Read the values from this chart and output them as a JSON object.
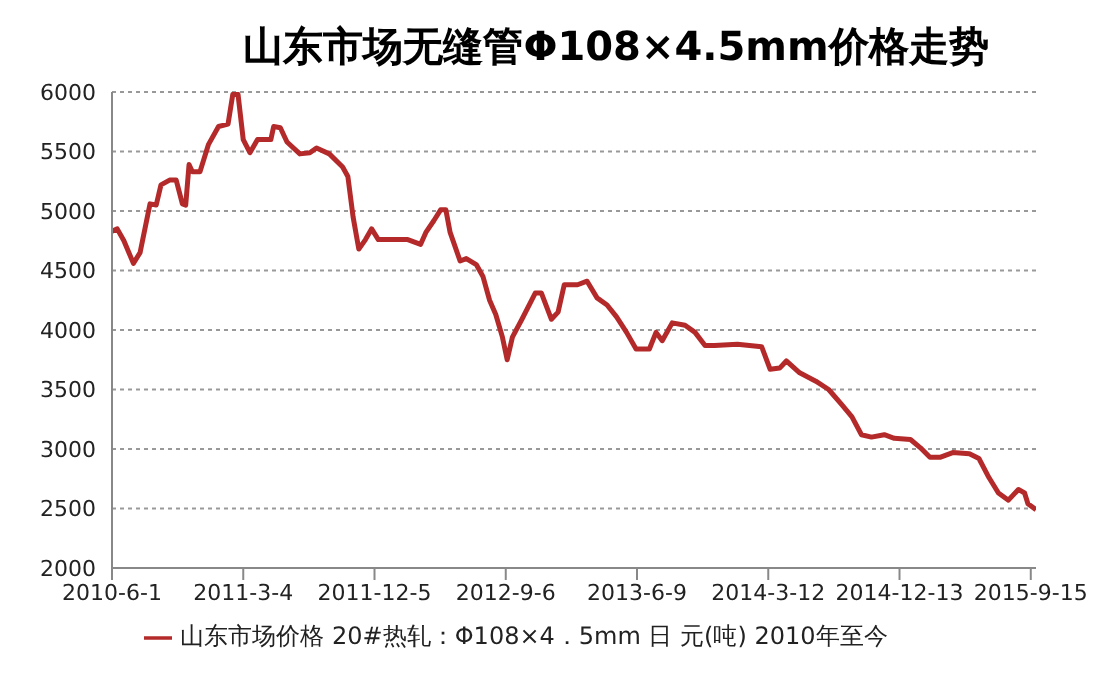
{
  "chart_data": {
    "type": "line",
    "title": "山东市场无缝管Φ108×4.5mm价格走势",
    "x": [
      "2010-06-01",
      "2010-06-12",
      "2010-06-26",
      "2010-07-16",
      "2010-07-30",
      "2010-08-20",
      "2010-09-02",
      "2010-09-12",
      "2010-09-30",
      "2010-10-14",
      "2010-10-27",
      "2010-11-03",
      "2010-11-10",
      "2010-11-17",
      "2010-12-03",
      "2010-12-21",
      "2011-01-11",
      "2011-01-31",
      "2011-02-10",
      "2011-02-21",
      "2011-03-04",
      "2011-03-18",
      "2011-04-03",
      "2011-05-01",
      "2011-05-07",
      "2011-05-21",
      "2011-06-04",
      "2011-07-01",
      "2011-07-22",
      "2011-08-05",
      "2011-09-01",
      "2011-09-29",
      "2011-10-10",
      "2011-10-21",
      "2011-11-02",
      "2011-11-16",
      "2011-11-29",
      "2011-12-13",
      "2012-01-03",
      "2012-02-13",
      "2012-03-11",
      "2012-03-22",
      "2012-04-08",
      "2012-04-22",
      "2012-05-03",
      "2012-05-12",
      "2012-06-02",
      "2012-06-15",
      "2012-07-06",
      "2012-07-20",
      "2012-08-03",
      "2012-08-16",
      "2012-08-30",
      "2012-09-09",
      "2012-09-20",
      "2012-10-10",
      "2012-11-07",
      "2012-11-20",
      "2012-12-11",
      "2012-12-25",
      "2013-01-07",
      "2013-02-04",
      "2013-02-24",
      "2013-03-17",
      "2013-04-07",
      "2013-04-27",
      "2013-05-18",
      "2013-06-07",
      "2013-07-05",
      "2013-07-19",
      "2013-08-01",
      "2013-08-22",
      "2013-09-18",
      "2013-10-09",
      "2013-10-30",
      "2013-11-19",
      "2014-01-06",
      "2014-02-26",
      "2014-03-16",
      "2014-04-05",
      "2014-04-19",
      "2014-05-17",
      "2014-06-20",
      "2014-07-17",
      "2014-08-14",
      "2014-09-04",
      "2014-09-24",
      "2014-10-15",
      "2014-11-11",
      "2014-12-02",
      "2015-01-05",
      "2015-01-26",
      "2015-02-15",
      "2015-03-08",
      "2015-04-04",
      "2015-05-09",
      "2015-05-29",
      "2015-06-19",
      "2015-07-09",
      "2015-07-30",
      "2015-08-20",
      "2015-09-02",
      "2015-09-09",
      "2015-09-26"
    ],
    "series": [
      {
        "name": "山东市场价格 20#热轧：Φ108×4．5mm 日 元(吨) 2010年至今",
        "color": "#b42a2a",
        "values": [
          4830,
          4850,
          4750,
          4560,
          4650,
          5060,
          5050,
          5220,
          5260,
          5260,
          5060,
          5050,
          5390,
          5330,
          5330,
          5560,
          5710,
          5730,
          5980,
          5980,
          5600,
          5490,
          5600,
          5600,
          5710,
          5700,
          5580,
          5480,
          5490,
          5530,
          5480,
          5370,
          5290,
          4950,
          4680,
          4760,
          4850,
          4760,
          4760,
          4760,
          4720,
          4820,
          4920,
          5010,
          5010,
          4820,
          4580,
          4600,
          4550,
          4450,
          4250,
          4130,
          3940,
          3750,
          3940,
          4090,
          4310,
          4310,
          4090,
          4150,
          4380,
          4380,
          4410,
          4270,
          4210,
          4110,
          3980,
          3840,
          3840,
          3980,
          3910,
          4060,
          4040,
          3980,
          3870,
          3870,
          3880,
          3860,
          3670,
          3680,
          3740,
          3640,
          3570,
          3500,
          3370,
          3270,
          3120,
          3100,
          3120,
          3090,
          3080,
          3010,
          2930,
          2930,
          2970,
          2960,
          2920,
          2760,
          2630,
          2570,
          2660,
          2630,
          2540,
          2490
        ]
      }
    ],
    "xlim": [
      "2010-06-01",
      "2015-09-26"
    ],
    "xticks": [
      {
        "value": "2010-06-01",
        "label": "2010-6-1"
      },
      {
        "value": "2011-03-04",
        "label": "2011-3-4"
      },
      {
        "value": "2011-12-05",
        "label": "2011-12-5"
      },
      {
        "value": "2012-09-06",
        "label": "2012-9-6"
      },
      {
        "value": "2013-06-09",
        "label": "2013-6-9"
      },
      {
        "value": "2014-03-12",
        "label": "2014-3-12"
      },
      {
        "value": "2014-12-13",
        "label": "2014-12-13"
      },
      {
        "value": "2015-09-15",
        "label": "2015-9-15"
      }
    ],
    "ylim": [
      2000,
      6000
    ],
    "yticks": [
      2000,
      2500,
      3000,
      3500,
      4000,
      4500,
      5000,
      5500,
      6000
    ],
    "grid": "y",
    "legend": "bottom",
    "marker": "none",
    "line_style": "solid"
  }
}
